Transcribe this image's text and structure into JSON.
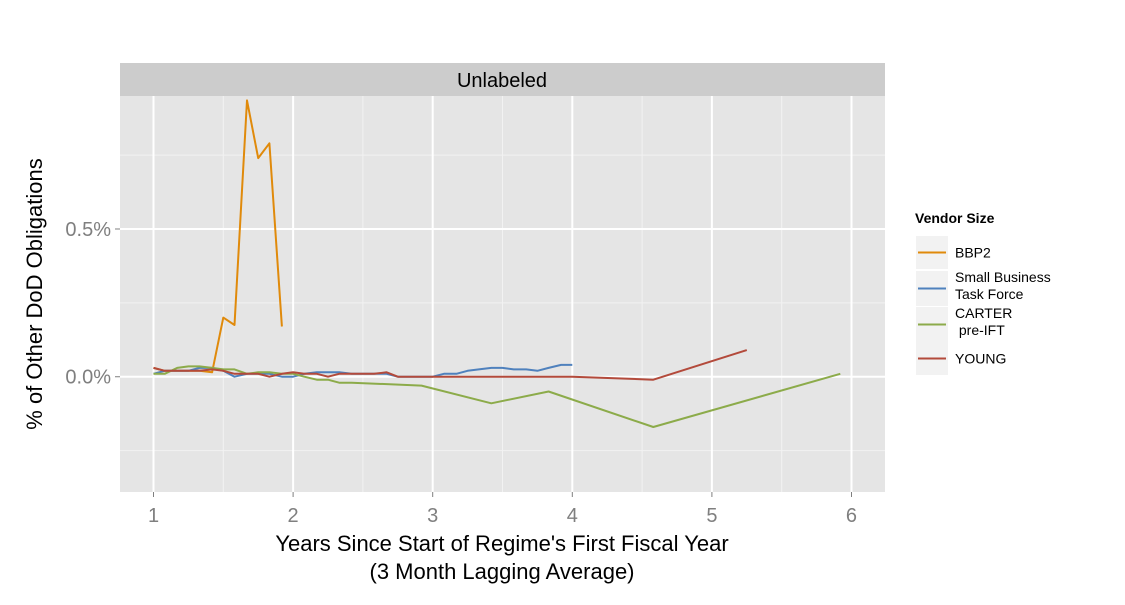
{
  "chart_data": {
    "type": "line",
    "facet_title": "Unlabeled",
    "xlabel_line1": "Years Since Start of Regime's First Fiscal Year",
    "xlabel_line2": "(3 Month Lagging Average)",
    "ylabel": "% of Other DoD Obligations",
    "xlim": [
      0.76,
      6.24
    ],
    "ylim": [
      -0.0039,
      0.0095
    ],
    "x_ticks": [
      1,
      2,
      3,
      4,
      5,
      6
    ],
    "x_tick_labels": [
      "1",
      "2",
      "3",
      "4",
      "5",
      "6"
    ],
    "y_ticks": [
      0.0,
      0.005
    ],
    "y_tick_labels": [
      "0.0%",
      "0.5%"
    ],
    "grid": true,
    "legend": {
      "title": "Vendor Size",
      "placement": "right",
      "entries": [
        {
          "lines": [
            "BBP2"
          ]
        },
        {
          "lines": [
            "Small Business",
            "Task Force"
          ]
        },
        {
          "lines": [
            "CARTER",
            " pre-IFT"
          ]
        },
        {
          "lines": [
            "YOUNG"
          ]
        }
      ]
    },
    "series": [
      {
        "name": "BBP2",
        "color": "#E08A0B",
        "x": [
          1.0,
          1.08,
          1.17,
          1.25,
          1.33,
          1.42,
          1.5,
          1.58,
          1.67,
          1.75,
          1.83,
          1.92
        ],
        "y": [
          0.0003,
          0.0002,
          0.0002,
          0.0002,
          0.0002,
          0.00015,
          0.002,
          0.00175,
          0.00935,
          0.0074,
          0.0079,
          0.0017
        ]
      },
      {
        "name": "Small Business Task Force",
        "color": "#4F81BD",
        "x": [
          1.0,
          1.08,
          1.17,
          1.25,
          1.33,
          1.42,
          1.5,
          1.58,
          1.67,
          1.75,
          1.83,
          1.92,
          2.0,
          2.08,
          2.17,
          2.25,
          2.33,
          2.42,
          2.5,
          2.58,
          2.67,
          2.75,
          2.83,
          2.92,
          3.0,
          3.08,
          3.17,
          3.25,
          3.33,
          3.42,
          3.5,
          3.58,
          3.67,
          3.75,
          3.83,
          3.92,
          4.0
        ],
        "y": [
          0.0001,
          0.0002,
          0.0002,
          0.0002,
          0.0003,
          0.0003,
          0.0002,
          0.0,
          0.0001,
          0.0001,
          0.0001,
          0.0,
          0.0,
          0.0001,
          0.00015,
          0.00015,
          0.00015,
          0.0001,
          0.0001,
          0.0001,
          0.0001,
          0.0,
          0.0,
          0.0,
          0.0,
          0.0001,
          0.0001,
          0.0002,
          0.00025,
          0.0003,
          0.0003,
          0.00025,
          0.00025,
          0.0002,
          0.0003,
          0.0004,
          0.0004
        ]
      },
      {
        "name": "CARTER pre-IFT",
        "color": "#8CAB4A",
        "x": [
          1.0,
          1.08,
          1.17,
          1.25,
          1.33,
          1.42,
          1.5,
          1.58,
          1.67,
          1.75,
          1.83,
          1.92,
          2.0,
          2.08,
          2.17,
          2.25,
          2.33,
          2.42,
          2.92,
          3.42,
          3.83,
          4.58,
          5.92
        ],
        "y": [
          0.0001,
          0.0001,
          0.0003,
          0.00035,
          0.00035,
          0.0003,
          0.00025,
          0.00025,
          0.0001,
          0.00015,
          0.00015,
          0.0001,
          0.0001,
          0.0,
          -0.0001,
          -0.0001,
          -0.0002,
          -0.0002,
          -0.0003,
          -0.0009,
          -0.0005,
          -0.0017,
          0.0001
        ]
      },
      {
        "name": "YOUNG",
        "color": "#B34A3B",
        "x": [
          1.0,
          1.08,
          1.17,
          1.25,
          1.33,
          1.42,
          1.5,
          1.58,
          1.67,
          1.75,
          1.83,
          1.92,
          2.0,
          2.08,
          2.17,
          2.25,
          2.33,
          2.42,
          2.5,
          2.58,
          2.67,
          2.75,
          2.83,
          2.92,
          3.0,
          3.08,
          4.0,
          4.58,
          5.25
        ],
        "y": [
          0.0003,
          0.0002,
          0.0002,
          0.0002,
          0.0002,
          0.00025,
          0.0002,
          0.0001,
          0.0001,
          0.0001,
          0.0,
          0.0001,
          0.00015,
          0.0001,
          0.0001,
          0.0,
          0.0001,
          0.0001,
          0.0001,
          0.0001,
          0.00015,
          0.0,
          0.0,
          0.0,
          0.0,
          0.0,
          0.0,
          -0.0001,
          0.0009
        ]
      }
    ]
  }
}
